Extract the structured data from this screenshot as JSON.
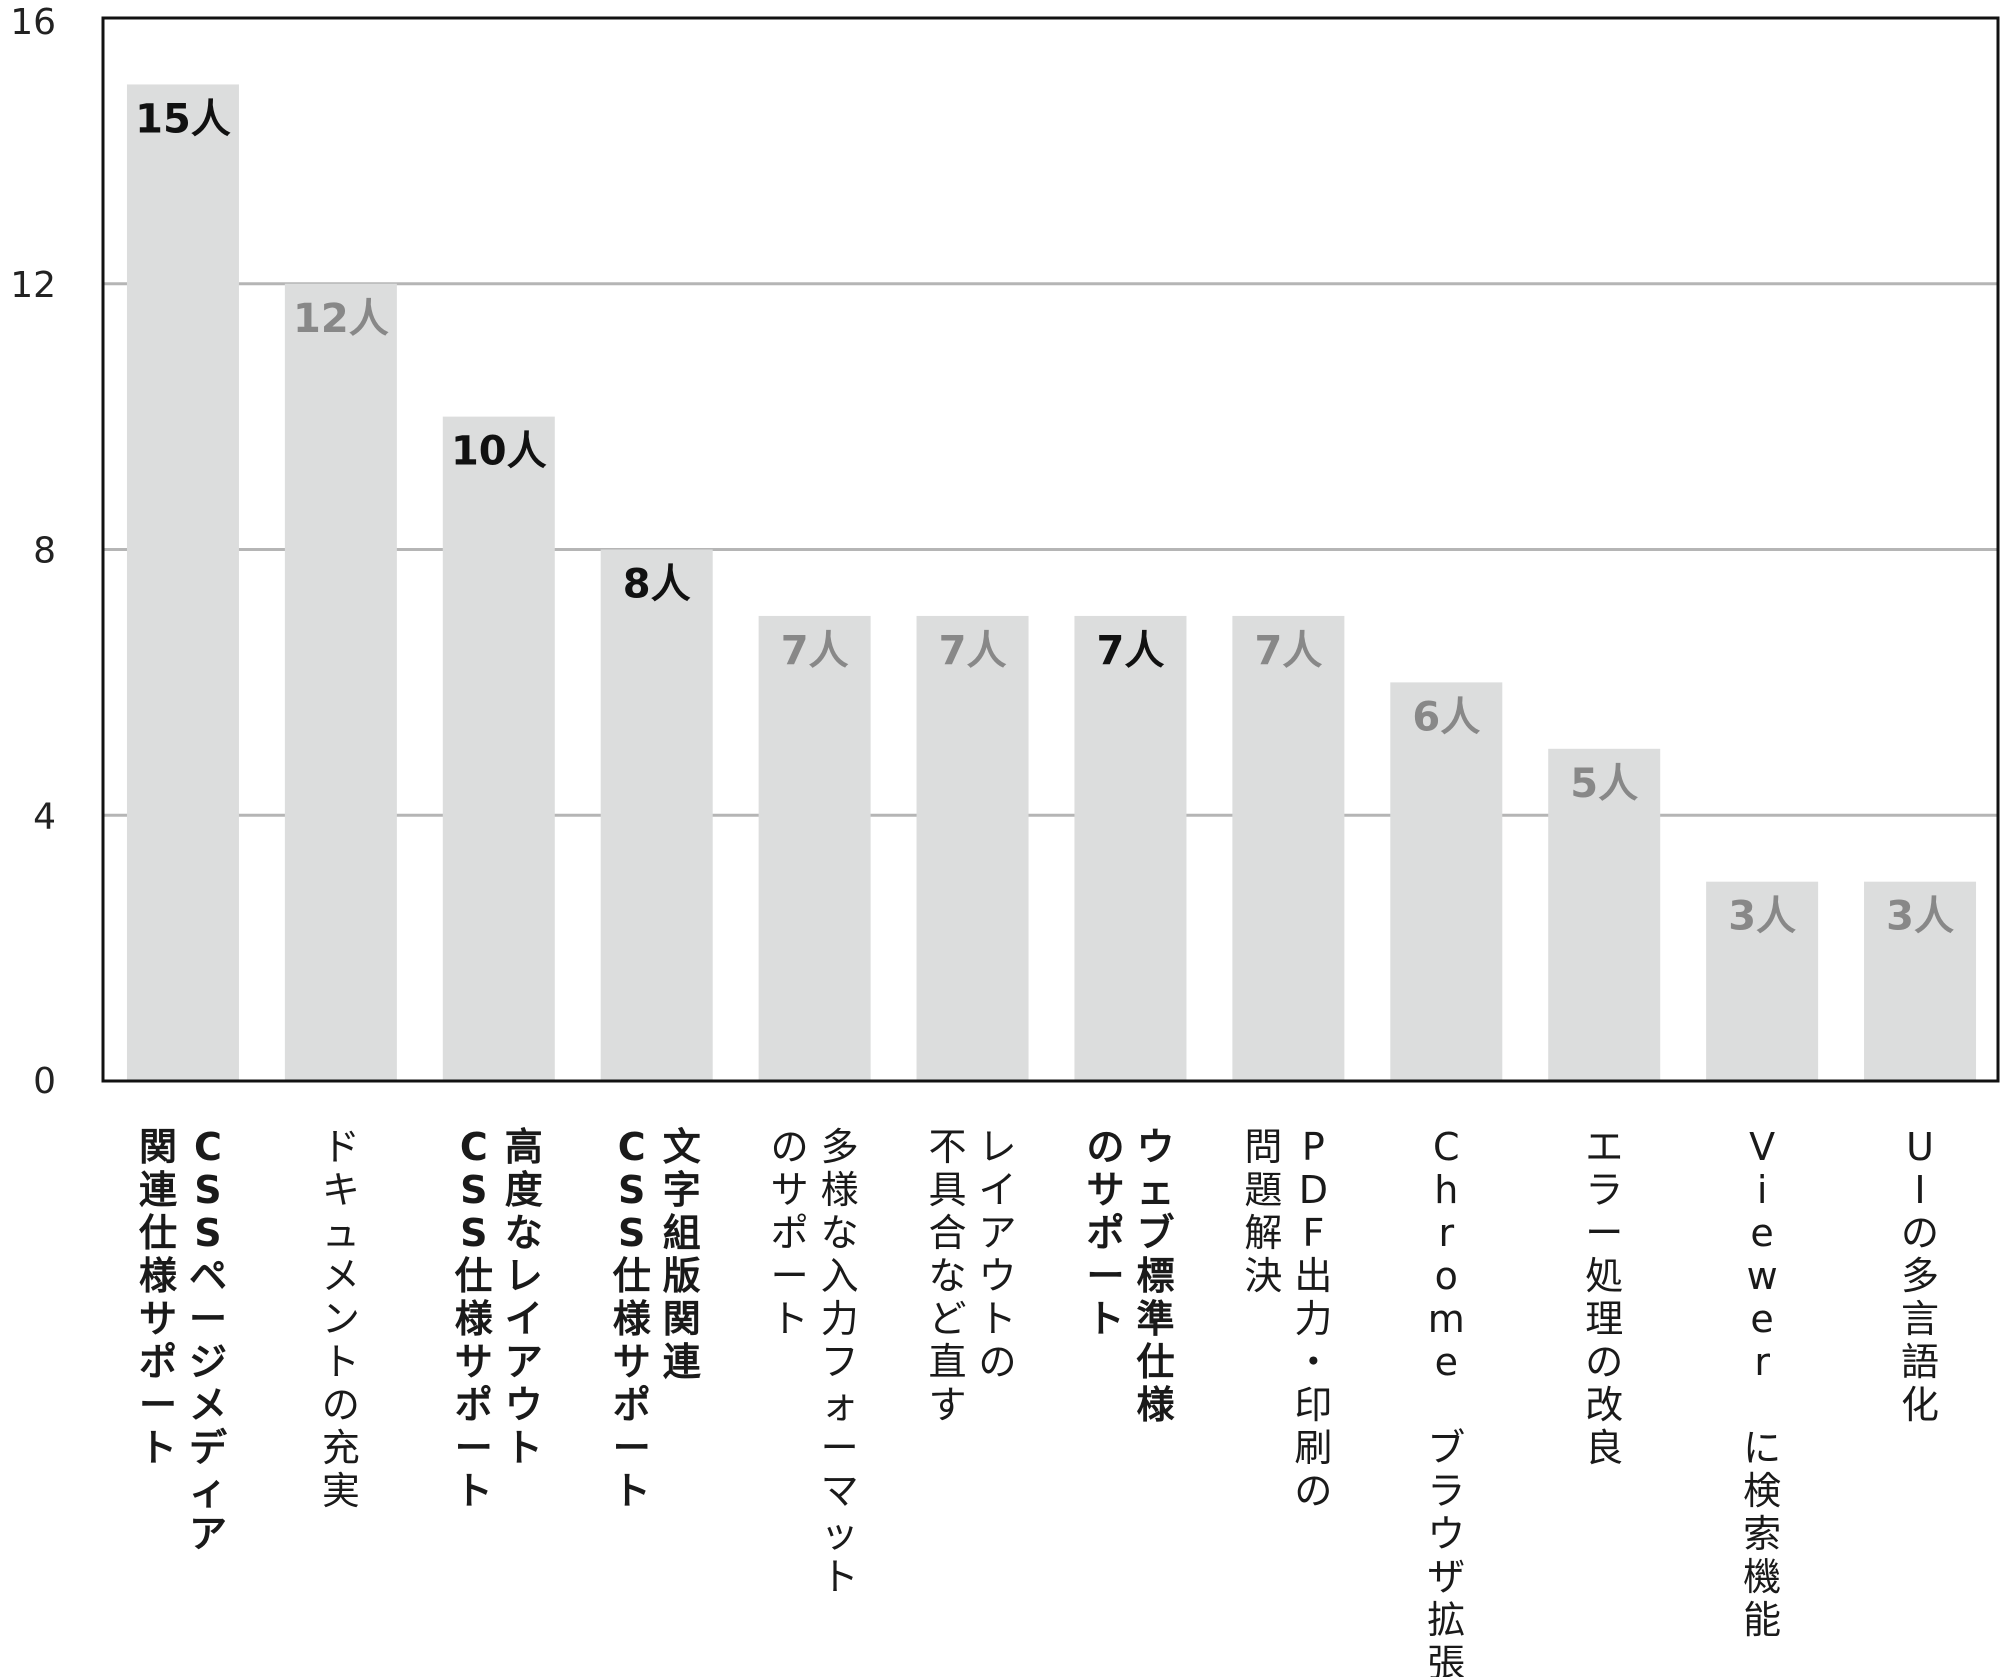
{
  "chart_data": {
    "type": "bar",
    "title": "",
    "xlabel": "",
    "ylabel": "",
    "ylim": [
      0,
      16
    ],
    "yticks": [
      0,
      4,
      8,
      12,
      16
    ],
    "grid": true,
    "bar_color": "#dcdddd",
    "highlight_label_color": "#111111",
    "muted_label_color": "#888888",
    "categories": [
      {
        "lines": [
          "CSSページメディア",
          "関連仕様サポート"
        ],
        "value": 15,
        "value_label": "15人",
        "highlight": true
      },
      {
        "lines": [
          "ドキュメントの充実"
        ],
        "value": 12,
        "value_label": "12人",
        "highlight": false
      },
      {
        "lines": [
          "高度なレイアウト",
          "CSS仕様サポート"
        ],
        "value": 10,
        "value_label": "10人",
        "highlight": true
      },
      {
        "lines": [
          "文字組版関連",
          "CSS仕様サポート"
        ],
        "value": 8,
        "value_label": "8人",
        "highlight": true
      },
      {
        "lines": [
          "多様な入力フォーマット",
          "のサポート"
        ],
        "value": 7,
        "value_label": "7人",
        "highlight": false
      },
      {
        "lines": [
          "レイアウトの",
          "不具合など直す"
        ],
        "value": 7,
        "value_label": "7人",
        "highlight": false
      },
      {
        "lines": [
          "ウェブ標準仕様",
          "のサポート"
        ],
        "value": 7,
        "value_label": "7人",
        "highlight": true
      },
      {
        "lines": [
          "PDF出力・印刷の",
          "問題解決"
        ],
        "value": 7,
        "value_label": "7人",
        "highlight": false
      },
      {
        "lines": [
          "Chrome ブラウザ拡張"
        ],
        "value": 6,
        "value_label": "6人",
        "highlight": false
      },
      {
        "lines": [
          "エラー処理の改良"
        ],
        "value": 5,
        "value_label": "5人",
        "highlight": false
      },
      {
        "lines": [
          "Viewer に検索機能"
        ],
        "value": 3,
        "value_label": "3人",
        "highlight": false
      },
      {
        "lines": [
          "UIの多言語化"
        ],
        "value": 3,
        "value_label": "3人",
        "highlight": false
      }
    ]
  }
}
